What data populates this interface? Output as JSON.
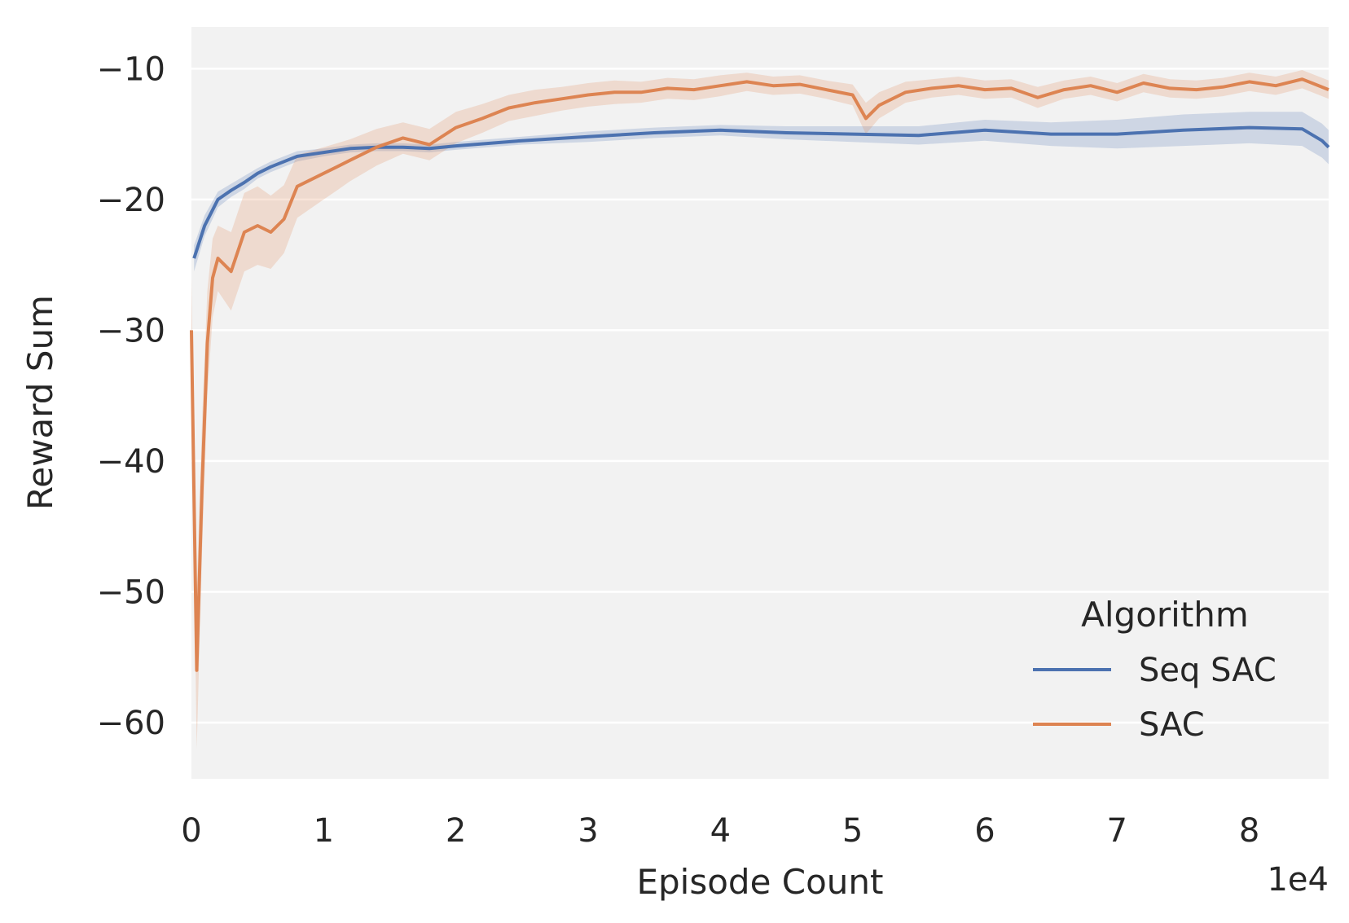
{
  "chart_data": {
    "type": "line",
    "xlabel": "Episode Count",
    "ylabel": "Reward Sum",
    "x_offset_label": "1e4",
    "xlim": [
      0,
      8.6
    ],
    "ylim": [
      -64.3,
      -6.8
    ],
    "x_ticks": [
      0,
      1,
      2,
      3,
      4,
      5,
      6,
      7,
      8
    ],
    "x_tick_labels": [
      "0",
      "1",
      "2",
      "3",
      "4",
      "5",
      "6",
      "7",
      "8"
    ],
    "y_ticks": [
      -10,
      -20,
      -30,
      -40,
      -50,
      -60
    ],
    "y_tick_labels": [
      "−10",
      "−20",
      "−30",
      "−40",
      "−50",
      "−60"
    ],
    "grid": true,
    "background": "#f2f2f2",
    "legend": {
      "title": "Algorithm",
      "placement": "lower-right",
      "entries": [
        "Seq SAC",
        "SAC"
      ]
    },
    "series": [
      {
        "name": "Seq SAC",
        "color": "#4c72b0",
        "x": [
          0.02,
          0.1,
          0.2,
          0.3,
          0.4,
          0.5,
          0.6,
          0.8,
          1.0,
          1.2,
          1.4,
          1.6,
          1.8,
          2.0,
          2.5,
          3.0,
          3.5,
          4.0,
          4.5,
          5.0,
          5.5,
          6.0,
          6.5,
          7.0,
          7.5,
          8.0,
          8.4,
          8.55,
          8.6
        ],
        "values": [
          -24.5,
          -22.0,
          -20.0,
          -19.3,
          -18.7,
          -18.0,
          -17.5,
          -16.7,
          -16.4,
          -16.1,
          -16.0,
          -16.0,
          -16.1,
          -15.9,
          -15.5,
          -15.2,
          -14.9,
          -14.7,
          -14.9,
          -15.0,
          -15.1,
          -14.7,
          -15.0,
          -15.0,
          -14.7,
          -14.5,
          -14.6,
          -15.5,
          -16.0
        ],
        "band": [
          1.0,
          0.8,
          0.6,
          0.5,
          0.5,
          0.4,
          0.4,
          0.4,
          0.3,
          0.3,
          0.3,
          0.3,
          0.3,
          0.3,
          0.3,
          0.4,
          0.4,
          0.4,
          0.5,
          0.6,
          0.7,
          0.8,
          0.9,
          1.1,
          1.2,
          1.2,
          1.3,
          1.3,
          1.3
        ]
      },
      {
        "name": "SAC",
        "color": "#dd8452",
        "x": [
          0.0,
          0.04,
          0.08,
          0.12,
          0.16,
          0.2,
          0.3,
          0.4,
          0.5,
          0.6,
          0.7,
          0.8,
          0.9,
          1.0,
          1.1,
          1.2,
          1.4,
          1.6,
          1.8,
          2.0,
          2.2,
          2.4,
          2.6,
          2.8,
          3.0,
          3.2,
          3.4,
          3.6,
          3.8,
          4.0,
          4.2,
          4.4,
          4.6,
          4.8,
          5.0,
          5.1,
          5.2,
          5.4,
          5.6,
          5.8,
          6.0,
          6.2,
          6.4,
          6.6,
          6.8,
          7.0,
          7.2,
          7.4,
          7.6,
          7.8,
          8.0,
          8.2,
          8.4,
          8.5,
          8.6
        ],
        "values": [
          -30.0,
          -56.0,
          -42.0,
          -31.0,
          -26.0,
          -24.5,
          -25.5,
          -22.5,
          -22.0,
          -22.5,
          -21.5,
          -19.0,
          -18.5,
          -18.0,
          -17.5,
          -17.0,
          -16.0,
          -15.3,
          -15.8,
          -14.5,
          -13.8,
          -13.0,
          -12.6,
          -12.3,
          -12.0,
          -11.8,
          -11.8,
          -11.5,
          -11.6,
          -11.3,
          -11.0,
          -11.3,
          -11.2,
          -11.6,
          -12.0,
          -13.8,
          -12.8,
          -11.8,
          -11.5,
          -11.3,
          -11.6,
          -11.5,
          -12.2,
          -11.6,
          -11.3,
          -11.8,
          -11.1,
          -11.5,
          -11.6,
          -11.4,
          -11.0,
          -11.3,
          -10.8,
          -11.2,
          -11.6
        ],
        "band": [
          4.0,
          6.0,
          5.0,
          4.0,
          3.0,
          2.5,
          3.0,
          3.0,
          3.0,
          2.8,
          2.6,
          2.4,
          2.2,
          2.0,
          1.8,
          1.6,
          1.4,
          1.2,
          1.2,
          1.2,
          1.1,
          1.0,
          1.0,
          0.9,
          0.9,
          0.9,
          0.8,
          0.8,
          0.8,
          0.8,
          0.7,
          0.7,
          0.7,
          0.7,
          0.8,
          1.2,
          1.0,
          0.8,
          0.7,
          0.7,
          0.7,
          0.7,
          0.8,
          0.7,
          0.7,
          0.7,
          0.7,
          0.7,
          0.7,
          0.7,
          0.7,
          0.7,
          0.7,
          0.7,
          0.7
        ]
      }
    ]
  }
}
